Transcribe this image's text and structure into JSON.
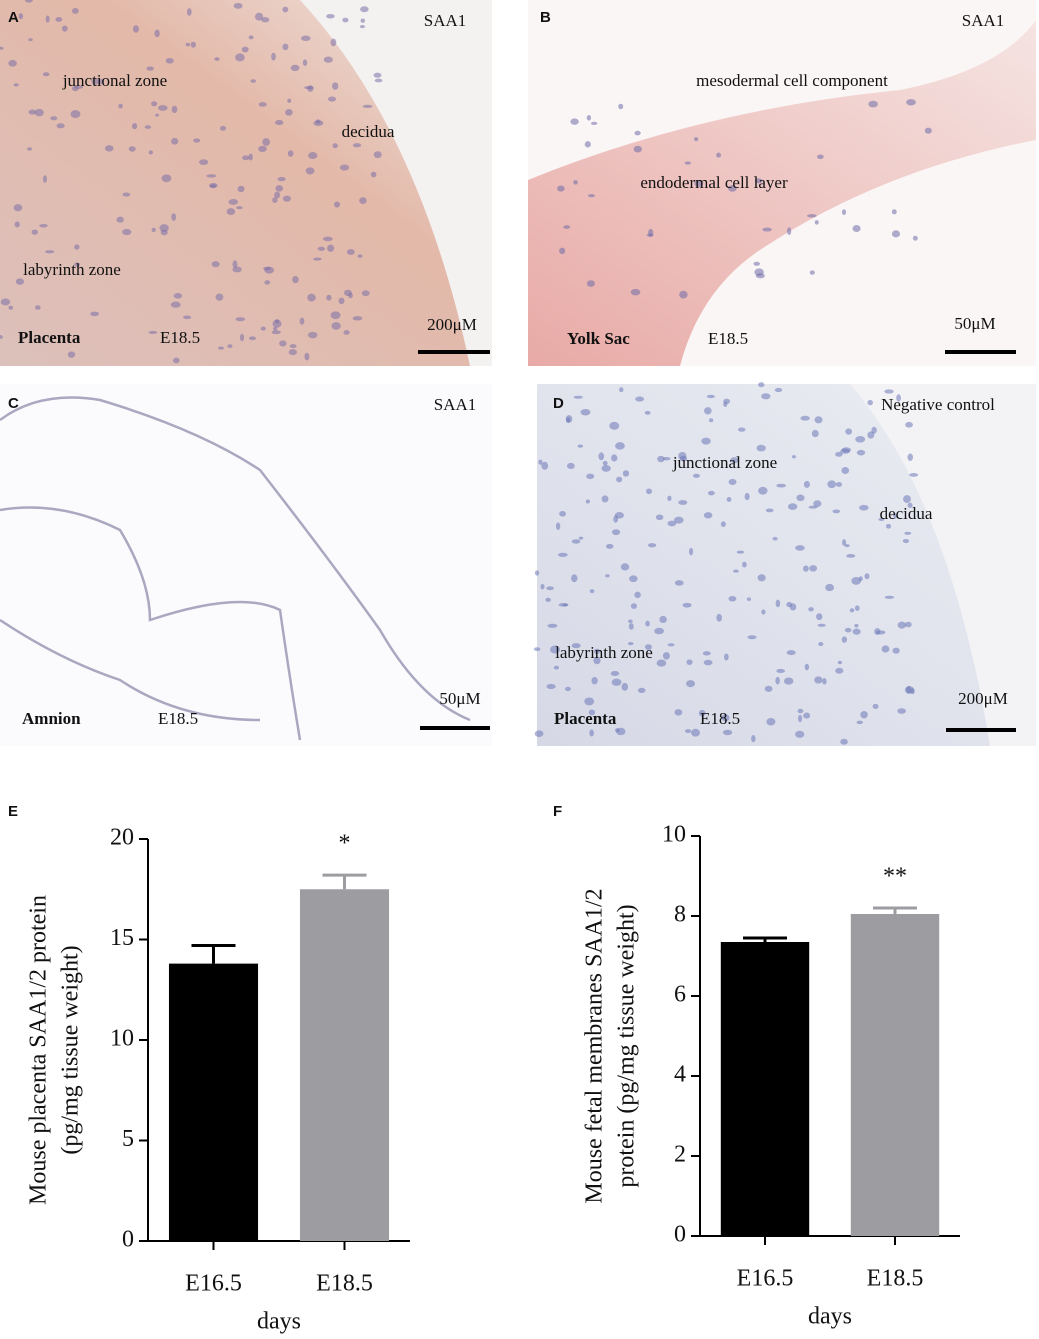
{
  "micrographs": [
    {
      "letter": "A",
      "stain": "SAA1",
      "labels": [
        "junctional zone",
        "decidua",
        "labyrinth zone"
      ],
      "tissue": "Placenta",
      "stage": "E18.5",
      "scale": "200μM"
    },
    {
      "letter": "B",
      "stain": "SAA1",
      "labels": [
        "mesodermal cell component",
        "endodermal cell layer"
      ],
      "tissue": "Yolk Sac",
      "stage": "E18.5",
      "scale": "50μM"
    },
    {
      "letter": "C",
      "stain": "SAA1",
      "labels": [],
      "tissue": "Amnion",
      "stage": "E18.5",
      "scale": "50μM"
    },
    {
      "letter": "D",
      "stain": "Negative control",
      "labels": [
        "junctional zone",
        "decidua",
        "labyrinth zone"
      ],
      "tissue": "Placenta",
      "stage": "E18.5",
      "scale": "200μM"
    }
  ],
  "chart_data": [
    {
      "type": "bar",
      "panel": "E",
      "categories": [
        "E16.5",
        "E18.5"
      ],
      "values": [
        13.8,
        17.5
      ],
      "errors": [
        0.9,
        0.7
      ],
      "colors": [
        "#000000",
        "#9d9ca1"
      ],
      "xlabel": "days",
      "ylabel": [
        "Mouse placenta SAA1/2 protein",
        "(pg/mg tissue weight)"
      ],
      "ylim": [
        0,
        20
      ],
      "yticks": [
        0,
        5,
        10,
        15,
        20
      ],
      "annotations": [
        {
          "category": "E18.5",
          "text": "*"
        }
      ]
    },
    {
      "type": "bar",
      "panel": "F",
      "categories": [
        "E16.5",
        "E18.5"
      ],
      "values": [
        7.35,
        8.05
      ],
      "errors": [
        0.1,
        0.15
      ],
      "colors": [
        "#000000",
        "#9d9ca1"
      ],
      "xlabel": "days",
      "ylabel": [
        "Mouse fetal membranes SAA1/2",
        "protein (pg/mg tissue weight)"
      ],
      "ylim": [
        0,
        10
      ],
      "yticks": [
        0,
        2,
        4,
        6,
        8,
        10
      ],
      "annotations": [
        {
          "category": "E18.5",
          "text": "**"
        }
      ]
    }
  ]
}
